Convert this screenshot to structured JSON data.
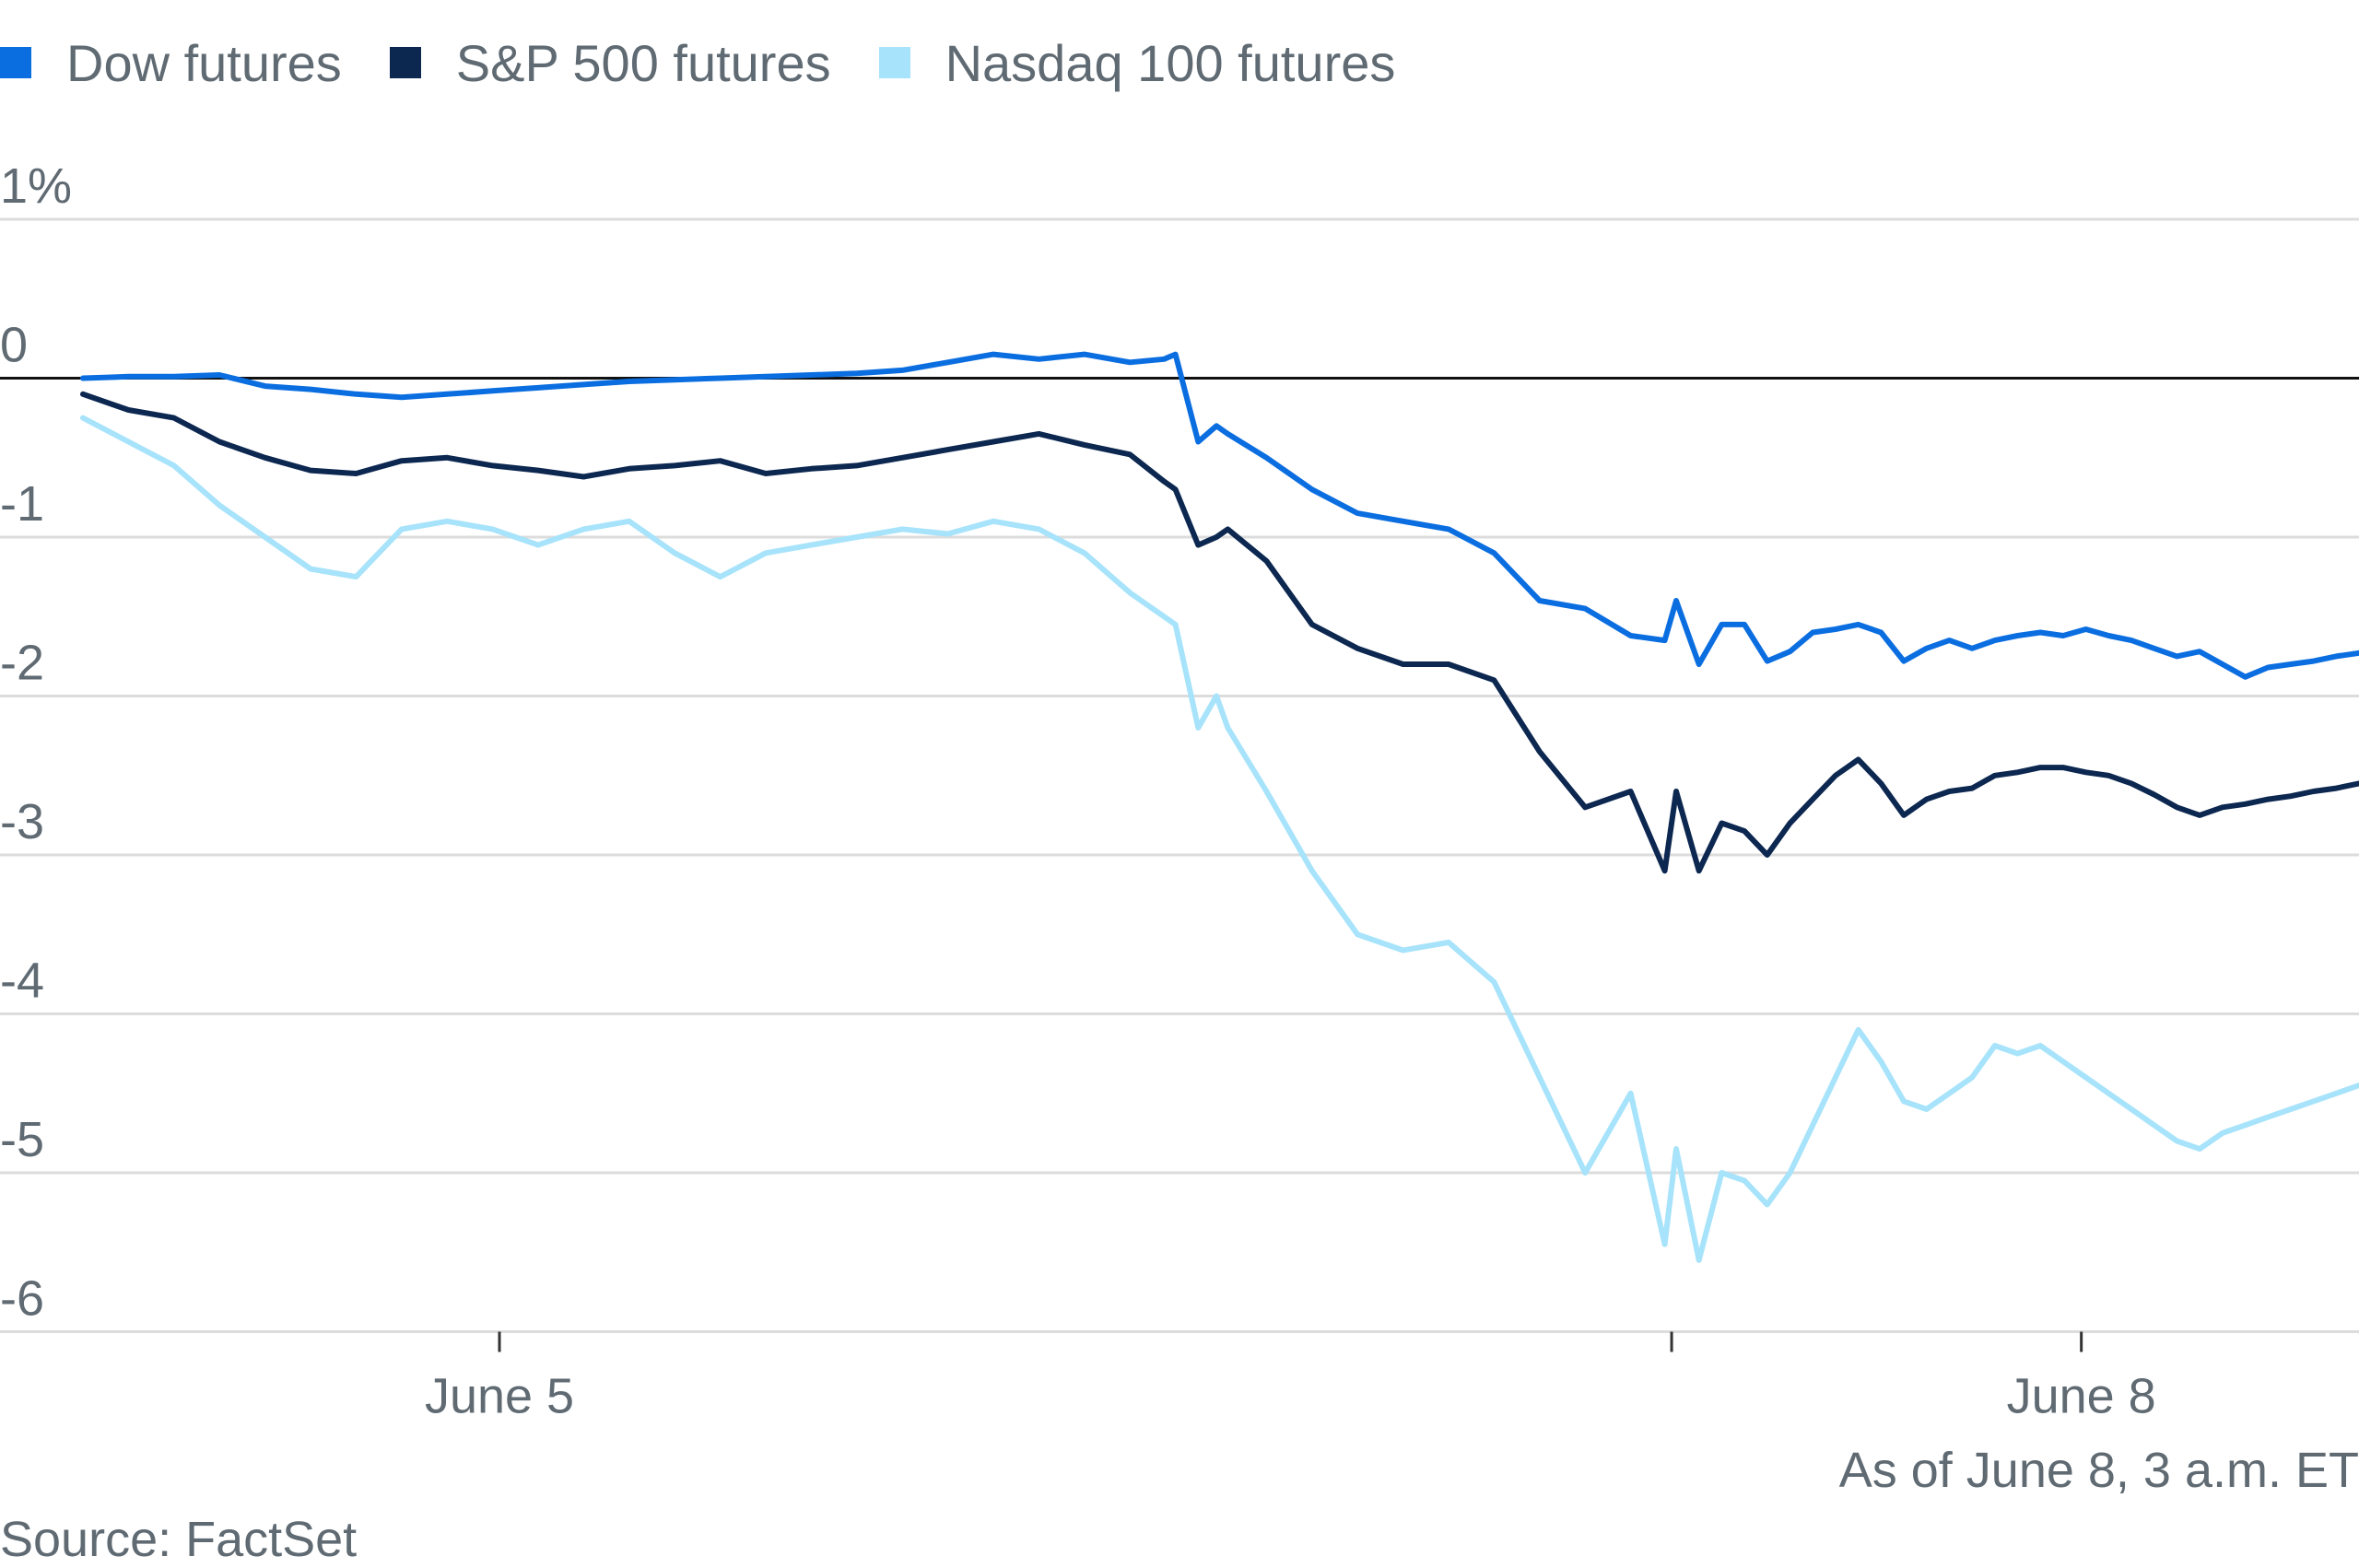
{
  "chart_data": {
    "type": "line",
    "title": "",
    "xlabel": "",
    "ylabel": "",
    "ylim": [
      -6.2,
      1.0
    ],
    "yticks": [
      {
        "value": 1,
        "label": "1%"
      },
      {
        "value": 0,
        "label": "0"
      },
      {
        "value": -1,
        "label": "-1"
      },
      {
        "value": -2,
        "label": "-2"
      },
      {
        "value": -3,
        "label": "-3"
      },
      {
        "value": -4,
        "label": "-4"
      },
      {
        "value": -5,
        "label": "-5"
      },
      {
        "value": -6,
        "label": "-6"
      }
    ],
    "xlim": [
      0,
      100
    ],
    "xticks": [
      {
        "value": 18.3,
        "label": "June 5"
      },
      {
        "value": 69.8,
        "label": ""
      },
      {
        "value": 87.8,
        "label": "June 8"
      }
    ],
    "zero_line": true,
    "grid": true,
    "legend_position": "top-left",
    "series": [
      {
        "name": "Dow futures",
        "color": "#0b6ee0",
        "x": [
          0,
          2,
          4,
          6,
          8,
          10,
          12,
          14,
          16,
          18,
          20,
          22,
          24,
          26,
          28,
          30,
          32,
          34,
          36,
          38,
          40,
          42,
          44,
          46,
          47.5,
          48,
          49,
          49.8,
          50.3,
          52,
          54,
          56,
          58,
          60,
          62,
          64,
          66,
          68,
          69.5,
          70,
          71,
          72,
          73,
          74,
          75,
          76,
          77,
          78,
          79,
          80,
          81,
          82,
          83,
          84,
          85,
          86,
          87,
          88,
          89,
          90,
          91,
          92,
          93,
          94,
          95,
          96,
          97,
          98,
          99,
          100
        ],
        "values": [
          0.0,
          0.01,
          0.01,
          0.02,
          -0.05,
          -0.07,
          -0.1,
          -0.12,
          -0.1,
          -0.08,
          -0.06,
          -0.04,
          -0.02,
          -0.01,
          0.0,
          0.01,
          0.02,
          0.03,
          0.05,
          0.1,
          0.15,
          0.12,
          0.15,
          0.1,
          0.12,
          0.15,
          -0.4,
          -0.3,
          -0.35,
          -0.5,
          -0.7,
          -0.85,
          -0.9,
          -0.95,
          -1.1,
          -1.4,
          -1.45,
          -1.62,
          -1.65,
          -1.4,
          -1.8,
          -1.55,
          -1.55,
          -1.78,
          -1.72,
          -1.6,
          -1.58,
          -1.55,
          -1.6,
          -1.78,
          -1.7,
          -1.65,
          -1.7,
          -1.65,
          -1.62,
          -1.6,
          -1.62,
          -1.58,
          -1.62,
          -1.65,
          -1.7,
          -1.75,
          -1.72,
          -1.8,
          -1.88,
          -1.82,
          -1.8,
          -1.78,
          -1.75,
          -1.73
        ]
      },
      {
        "name": "S&P 500 futures",
        "color": "#0c2750",
        "x": [
          0,
          2,
          4,
          6,
          8,
          10,
          12,
          14,
          16,
          18,
          20,
          22,
          24,
          26,
          28,
          30,
          32,
          34,
          36,
          38,
          40,
          42,
          44,
          46,
          47.5,
          48,
          49,
          49.8,
          50.3,
          52,
          54,
          56,
          58,
          60,
          62,
          64,
          66,
          68,
          69.5,
          70,
          71,
          72,
          73,
          74,
          75,
          76,
          77,
          78,
          79,
          80,
          81,
          82,
          83,
          84,
          85,
          86,
          87,
          88,
          89,
          90,
          91,
          92,
          93,
          94,
          95,
          96,
          97,
          98,
          99,
          100
        ],
        "values": [
          -0.1,
          -0.2,
          -0.25,
          -0.4,
          -0.5,
          -0.58,
          -0.6,
          -0.52,
          -0.5,
          -0.55,
          -0.58,
          -0.62,
          -0.57,
          -0.55,
          -0.52,
          -0.6,
          -0.57,
          -0.55,
          -0.5,
          -0.45,
          -0.4,
          -0.35,
          -0.42,
          -0.48,
          -0.65,
          -0.7,
          -1.05,
          -1.0,
          -0.95,
          -1.15,
          -1.55,
          -1.7,
          -1.8,
          -1.8,
          -1.9,
          -2.35,
          -2.7,
          -2.6,
          -3.1,
          -2.6,
          -3.1,
          -2.8,
          -2.85,
          -3.0,
          -2.8,
          -2.65,
          -2.5,
          -2.4,
          -2.55,
          -2.75,
          -2.65,
          -2.6,
          -2.58,
          -2.5,
          -2.48,
          -2.45,
          -2.45,
          -2.48,
          -2.5,
          -2.55,
          -2.62,
          -2.7,
          -2.75,
          -2.7,
          -2.68,
          -2.65,
          -2.63,
          -2.6,
          -2.58,
          -2.55
        ]
      },
      {
        "name": "Nasdaq 100 futures",
        "color": "#a7e3fb",
        "x": [
          0,
          2,
          4,
          6,
          8,
          10,
          12,
          14,
          16,
          18,
          20,
          22,
          24,
          26,
          28,
          30,
          32,
          34,
          36,
          38,
          40,
          42,
          44,
          46,
          47.5,
          48,
          49,
          49.8,
          50.3,
          52,
          54,
          56,
          58,
          60,
          62,
          64,
          66,
          68,
          69.5,
          70,
          71,
          72,
          73,
          74,
          75,
          76,
          77,
          78,
          79,
          80,
          81,
          82,
          83,
          84,
          85,
          86,
          87,
          88,
          89,
          90,
          91,
          92,
          93,
          94,
          95,
          96,
          97,
          98,
          99,
          100
        ],
        "values": [
          -0.25,
          -0.4,
          -0.55,
          -0.8,
          -1.0,
          -1.2,
          -1.25,
          -0.95,
          -0.9,
          -0.95,
          -1.05,
          -0.95,
          -0.9,
          -1.1,
          -1.25,
          -1.1,
          -1.05,
          -1.0,
          -0.95,
          -0.98,
          -0.9,
          -0.95,
          -1.1,
          -1.35,
          -1.5,
          -1.55,
          -2.2,
          -2.0,
          -2.2,
          -2.6,
          -3.1,
          -3.5,
          -3.6,
          -3.55,
          -3.8,
          -4.4,
          -5.0,
          -4.5,
          -5.45,
          -4.85,
          -5.55,
          -5.0,
          -5.05,
          -5.2,
          -5.0,
          -4.7,
          -4.4,
          -4.1,
          -4.3,
          -4.55,
          -4.6,
          -4.5,
          -4.4,
          -4.2,
          -4.25,
          -4.2,
          -4.3,
          -4.4,
          -4.5,
          -4.6,
          -4.7,
          -4.8,
          -4.85,
          -4.75,
          -4.7,
          -4.65,
          -4.6,
          -4.55,
          -4.5,
          -4.45
        ]
      }
    ],
    "annotations": [
      "As of June 8, 3 a.m. ET"
    ],
    "source": "Source: FactSet"
  }
}
